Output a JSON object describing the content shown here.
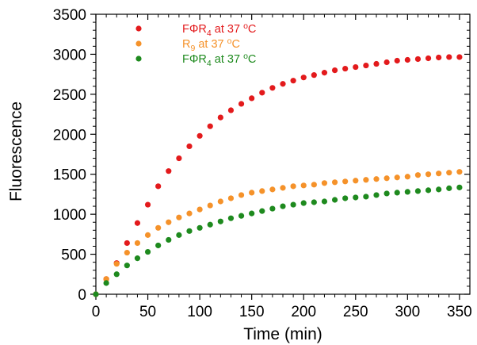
{
  "chart_data": {
    "type": "scatter",
    "xlabel": "Time (min)",
    "ylabel": "Fluorescence",
    "xlim": [
      0,
      360
    ],
    "ylim": [
      0,
      3500
    ],
    "xticks": [
      0,
      50,
      100,
      150,
      200,
      250,
      300,
      350
    ],
    "yticks": [
      0,
      500,
      1000,
      1500,
      2000,
      2500,
      3000,
      3500
    ],
    "legend_position": "top-left",
    "grid": false,
    "series": [
      {
        "name": "FΦR4 at 37 oC",
        "color": "#e31a1c",
        "x": [
          0,
          10,
          20,
          30,
          40,
          50,
          60,
          70,
          80,
          90,
          100,
          110,
          120,
          130,
          140,
          150,
          160,
          170,
          180,
          190,
          200,
          210,
          220,
          230,
          240,
          250,
          260,
          270,
          280,
          290,
          300,
          310,
          320,
          330,
          340,
          350
        ],
        "y": [
          0,
          190,
          390,
          640,
          890,
          1120,
          1350,
          1540,
          1700,
          1850,
          1980,
          2100,
          2210,
          2300,
          2380,
          2450,
          2520,
          2580,
          2630,
          2670,
          2710,
          2740,
          2770,
          2800,
          2820,
          2840,
          2860,
          2880,
          2900,
          2920,
          2930,
          2940,
          2950,
          2960,
          2965,
          2965
        ]
      },
      {
        "name": "R9 at 37 oC",
        "color": "#f5922a",
        "x": [
          0,
          10,
          20,
          30,
          40,
          50,
          60,
          70,
          80,
          90,
          100,
          110,
          120,
          130,
          140,
          150,
          160,
          170,
          180,
          190,
          200,
          210,
          220,
          230,
          240,
          250,
          260,
          270,
          280,
          290,
          300,
          310,
          320,
          330,
          340,
          350
        ],
        "y": [
          0,
          190,
          380,
          520,
          640,
          740,
          830,
          900,
          960,
          1010,
          1060,
          1110,
          1160,
          1200,
          1240,
          1270,
          1290,
          1310,
          1330,
          1350,
          1360,
          1370,
          1390,
          1400,
          1410,
          1420,
          1430,
          1440,
          1450,
          1460,
          1470,
          1490,
          1500,
          1510,
          1520,
          1530
        ]
      },
      {
        "name": "FΦR4 at 37 oC",
        "color": "#1e8a1e",
        "x": [
          0,
          10,
          20,
          30,
          40,
          50,
          60,
          70,
          80,
          90,
          100,
          110,
          120,
          130,
          140,
          150,
          160,
          170,
          180,
          190,
          200,
          210,
          220,
          230,
          240,
          250,
          260,
          270,
          280,
          290,
          300,
          310,
          320,
          330,
          340,
          350
        ],
        "y": [
          0,
          140,
          250,
          360,
          450,
          530,
          610,
          680,
          740,
          790,
          830,
          870,
          910,
          950,
          980,
          1010,
          1040,
          1070,
          1100,
          1120,
          1140,
          1150,
          1160,
          1180,
          1200,
          1210,
          1220,
          1240,
          1260,
          1270,
          1280,
          1290,
          1300,
          1310,
          1325,
          1335
        ]
      }
    ],
    "legend": [
      {
        "main": "FΦR",
        "sub": "4",
        "rest": " at 37 ",
        "sup": "o",
        "end": "C",
        "color": "#e31a1c"
      },
      {
        "main": "R",
        "sub": "9",
        "rest": " at 37 ",
        "sup": "o",
        "end": "C",
        "color": "#f5922a"
      },
      {
        "main": "FΦR",
        "sub": "4",
        "rest": " at 37 ",
        "sup": "o",
        "end": "C",
        "color": "#1e8a1e"
      }
    ]
  }
}
